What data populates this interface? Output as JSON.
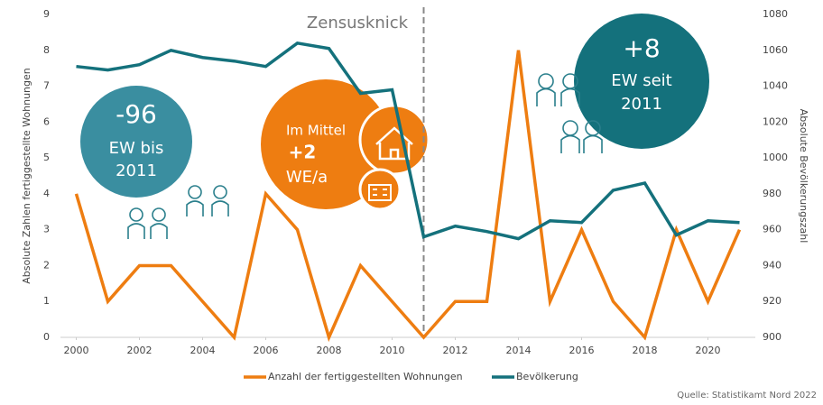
{
  "chart_data": {
    "type": "line",
    "x": [
      2000,
      2001,
      2002,
      2003,
      2004,
      2005,
      2006,
      2007,
      2008,
      2009,
      2010,
      2011,
      2012,
      2013,
      2014,
      2015,
      2016,
      2017,
      2018,
      2019,
      2020,
      2021
    ],
    "xlim": [
      1999.5,
      2021.5
    ],
    "xticks": [
      2000,
      2002,
      2004,
      2006,
      2008,
      2010,
      2012,
      2014,
      2016,
      2018,
      2020
    ],
    "ylim": [
      0,
      9
    ],
    "yticks": [
      0,
      1,
      2,
      3,
      4,
      5,
      6,
      7,
      8,
      9
    ],
    "y2lim": [
      900,
      1080
    ],
    "y2ticks": [
      900,
      920,
      940,
      960,
      980,
      1000,
      1020,
      1040,
      1060,
      1080
    ],
    "ylabel": "Absolute Zahlen fertiggestellte Wohnungen",
    "y2label": "Absolute Bevölkerungszahl",
    "series": [
      {
        "name": "Anzahl der fertiggestellten Wohnungen",
        "color": "#ee7d11",
        "values": [
          4,
          1,
          2,
          2,
          1,
          0,
          4,
          3,
          0,
          2,
          1,
          0,
          1,
          1,
          8,
          1,
          3,
          1,
          0,
          3,
          1,
          3
        ]
      },
      {
        "name": "Bevölkerung",
        "color": "#14717c",
        "axis": "y2",
        "values": [
          1051,
          1049,
          1052,
          1060,
          1056,
          1054,
          1051,
          1064,
          1061,
          1036,
          1038,
          956,
          962,
          959,
          955,
          965,
          964,
          982,
          986,
          957,
          965,
          964
        ]
      }
    ],
    "annotations": {
      "break": "Zensusknick",
      "before": [
        "-96",
        "EW bis",
        "2011"
      ],
      "mean": [
        "Im Mittel",
        "+2",
        "WE/a"
      ],
      "after": [
        "+8",
        "EW seit",
        "2011"
      ]
    },
    "source": "Quelle: Statistikamt Nord 2022"
  }
}
